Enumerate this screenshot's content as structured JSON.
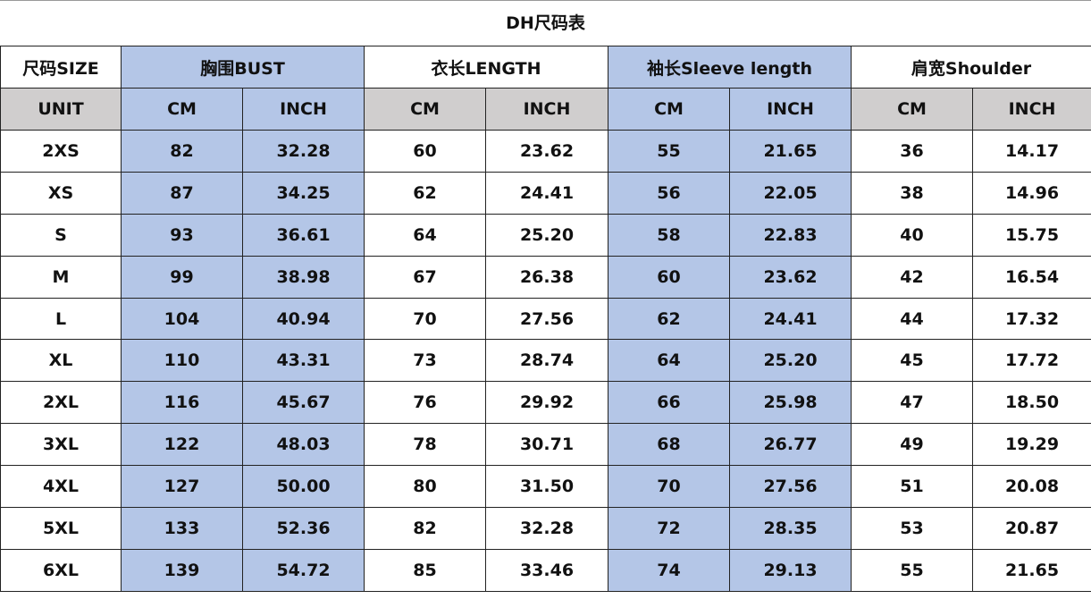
{
  "title": "DH尺码表",
  "colors": {
    "accent_blue": "#b4c6e7",
    "unit_gray": "#d0cece"
  },
  "header": {
    "size_label": "尺码SIZE",
    "groups": [
      {
        "label": "胸围BUST",
        "highlight": true
      },
      {
        "label": "衣长LENGTH",
        "highlight": false
      },
      {
        "label": "袖长Sleeve length",
        "highlight": true
      },
      {
        "label": "肩宽Shoulder",
        "highlight": false
      }
    ]
  },
  "units": {
    "label": "UNIT",
    "cm": "CM",
    "inch": "INCH"
  },
  "rows": [
    [
      "2XS",
      "82",
      "32.28",
      "60",
      "23.62",
      "55",
      "21.65",
      "36",
      "14.17"
    ],
    [
      "XS",
      "87",
      "34.25",
      "62",
      "24.41",
      "56",
      "22.05",
      "38",
      "14.96"
    ],
    [
      "S",
      "93",
      "36.61",
      "64",
      "25.20",
      "58",
      "22.83",
      "40",
      "15.75"
    ],
    [
      "M",
      "99",
      "38.98",
      "67",
      "26.38",
      "60",
      "23.62",
      "42",
      "16.54"
    ],
    [
      "L",
      "104",
      "40.94",
      "70",
      "27.56",
      "62",
      "24.41",
      "44",
      "17.32"
    ],
    [
      "XL",
      "110",
      "43.31",
      "73",
      "28.74",
      "64",
      "25.20",
      "45",
      "17.72"
    ],
    [
      "2XL",
      "116",
      "45.67",
      "76",
      "29.92",
      "66",
      "25.98",
      "47",
      "18.50"
    ],
    [
      "3XL",
      "122",
      "48.03",
      "78",
      "30.71",
      "68",
      "26.77",
      "49",
      "19.29"
    ],
    [
      "4XL",
      "127",
      "50.00",
      "80",
      "31.50",
      "70",
      "27.56",
      "51",
      "20.08"
    ],
    [
      "5XL",
      "133",
      "52.36",
      "82",
      "32.28",
      "72",
      "28.35",
      "53",
      "20.87"
    ],
    [
      "6XL",
      "139",
      "54.72",
      "85",
      "33.46",
      "74",
      "29.13",
      "55",
      "21.65"
    ]
  ]
}
